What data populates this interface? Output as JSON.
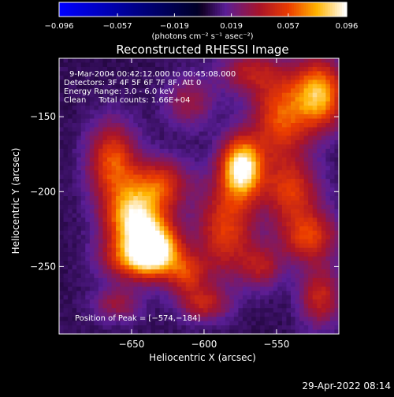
{
  "chart_data": {
    "type": "heatmap",
    "title": "Reconstructed RHESSI Image",
    "xlabel": "Heliocentric X (arcsec)",
    "ylabel": "Heliocentric Y (arcsec)",
    "xlim": [
      -700,
      -507
    ],
    "ylim": [
      -295,
      -111
    ],
    "xticks": [
      -650,
      -600,
      -550
    ],
    "xtick_labels": [
      "−650",
      "−600",
      "−550"
    ],
    "yticks": [
      -150,
      -200,
      -250
    ],
    "ytick_labels": [
      "−150",
      "−200",
      "−250"
    ],
    "colorbar": {
      "colormap": "black-purple-red-yellow-white",
      "range": [
        -0.096,
        0.096
      ],
      "ticks": [
        -0.096,
        -0.057,
        -0.019,
        0.019,
        0.057,
        0.096
      ],
      "tick_labels": [
        "−0.096",
        "−0.057",
        "−0.019",
        "0.019",
        "0.057",
        "0.096"
      ],
      "label": "(photons cm⁻² s⁻¹ asec⁻²)"
    },
    "annotations": {
      "time": "9-Mar-2004 00:42:12.000 to 00:45:08.000",
      "detectors": "Detectors: 3F 4F 5F 6F 7F 8F, Att 0",
      "energy": "Energy Range: 3.0 - 6.0 keV",
      "clean": "Clean     Total counts: 1.66E+04",
      "peak": "Position of Peak = [−574,−184]"
    },
    "sources": [
      {
        "x": -574,
        "y": -184,
        "sx": 10,
        "sy": 14,
        "amp": 1.0
      },
      {
        "x": -648,
        "y": -218,
        "sx": 14,
        "sy": 15,
        "amp": 0.9
      },
      {
        "x": -633,
        "y": -238,
        "sx": 12,
        "sy": 12,
        "amp": 0.85
      },
      {
        "x": -648,
        "y": -245,
        "sx": 16,
        "sy": 10,
        "amp": 0.55
      },
      {
        "x": -663,
        "y": -180,
        "sx": 12,
        "sy": 18,
        "amp": 0.6
      },
      {
        "x": -630,
        "y": -195,
        "sx": 14,
        "sy": 12,
        "amp": 0.5
      },
      {
        "x": -612,
        "y": -255,
        "sx": 10,
        "sy": 10,
        "amp": 0.45
      },
      {
        "x": -585,
        "y": -225,
        "sx": 14,
        "sy": 22,
        "amp": 0.55
      },
      {
        "x": -600,
        "y": -275,
        "sx": 12,
        "sy": 8,
        "amp": 0.4
      },
      {
        "x": -660,
        "y": -275,
        "sx": 12,
        "sy": 8,
        "amp": 0.3
      },
      {
        "x": -547,
        "y": -150,
        "sx": 14,
        "sy": 22,
        "amp": 0.6
      },
      {
        "x": -520,
        "y": -135,
        "sx": 12,
        "sy": 16,
        "amp": 0.8
      },
      {
        "x": -540,
        "y": -200,
        "sx": 14,
        "sy": 14,
        "amp": 0.5
      },
      {
        "x": -528,
        "y": -230,
        "sx": 14,
        "sy": 12,
        "amp": 0.55
      },
      {
        "x": -520,
        "y": -270,
        "sx": 10,
        "sy": 14,
        "amp": 0.45
      },
      {
        "x": -560,
        "y": -250,
        "sx": 10,
        "sy": 10,
        "amp": 0.35
      },
      {
        "x": -610,
        "y": -140,
        "sx": 12,
        "sy": 12,
        "amp": 0.3
      },
      {
        "x": -570,
        "y": -120,
        "sx": 14,
        "sy": 10,
        "amp": 0.35
      }
    ]
  },
  "footer": {
    "timestamp": "29-Apr-2022 08:14"
  }
}
